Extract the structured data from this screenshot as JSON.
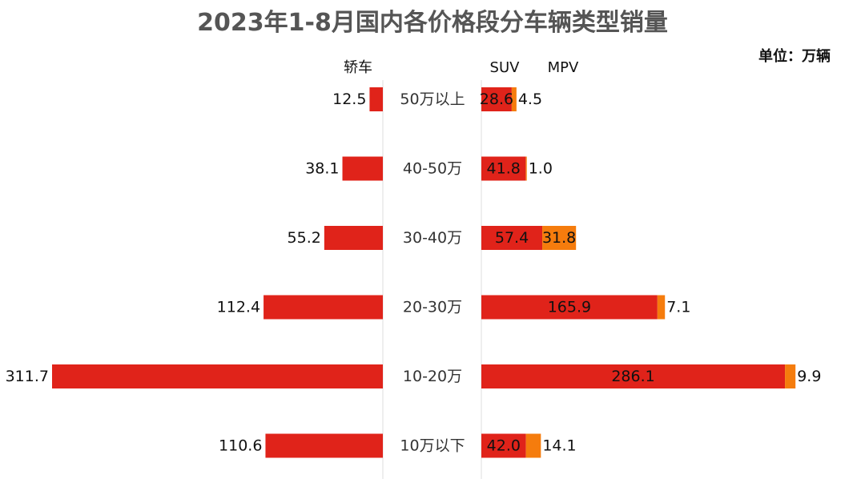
{
  "chart_data": {
    "type": "bar",
    "title": "2023年1-8月国内各价格段分车辆类型销量",
    "unit_label": "单位：万辆",
    "left_header": "轿车",
    "right_headers": [
      "SUV",
      "MPV"
    ],
    "categories": [
      "50万以上",
      "40-50万",
      "30-40万",
      "20-30万",
      "10-20万",
      "10万以下"
    ],
    "series": [
      {
        "name": "轿车",
        "side": "left",
        "values": [
          12.5,
          38.1,
          55.2,
          112.4,
          311.7,
          110.6
        ]
      },
      {
        "name": "SUV",
        "side": "right",
        "values": [
          28.6,
          41.8,
          57.4,
          165.9,
          286.1,
          42.0
        ]
      },
      {
        "name": "MPV",
        "side": "right",
        "stacked_on": "SUV",
        "values": [
          4.5,
          1.0,
          31.8,
          7.1,
          9.9,
          14.1
        ]
      }
    ],
    "colors": {
      "轿车": "#e0231a",
      "SUV": "#e0231a",
      "MPV": "#f57c0d"
    },
    "grid": false,
    "legend": "none"
  }
}
